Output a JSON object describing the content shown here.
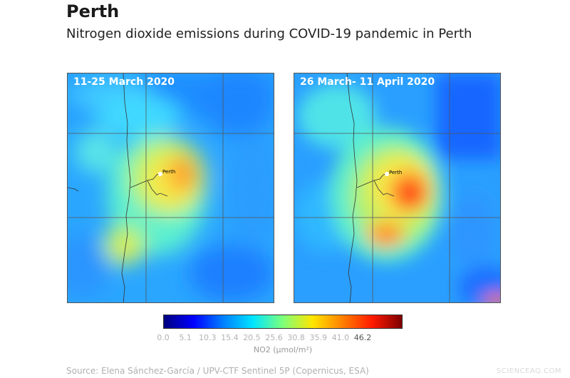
{
  "header": {
    "title": "Perth",
    "subtitle": "Nitrogen dioxide emissions during COVID-19 pandemic in Perth"
  },
  "panels": [
    {
      "period": "11-25 March 2020",
      "city_label": "Perth"
    },
    {
      "period": "26 March- 11 April 2020",
      "city_label": "Perth"
    }
  ],
  "colorbar": {
    "ticks": [
      "0.0",
      "5.1",
      "10.3",
      "15.4",
      "20.5",
      "25.6",
      "30.8",
      "35.9",
      "41.0",
      "46.2"
    ],
    "label": "NO2 (µmol/m²)",
    "colors": [
      "#00007f",
      "#0000ff",
      "#0080ff",
      "#00e5ff",
      "#7dff7a",
      "#ffe600",
      "#ff8000",
      "#ff1a00",
      "#7f0000"
    ]
  },
  "footer": {
    "source": "Source: Elena Sánchez-García / UPV-CTF Sentinel 5P (Copernicus, ESA)",
    "watermark": "SCIENCEAQ.COM"
  }
}
